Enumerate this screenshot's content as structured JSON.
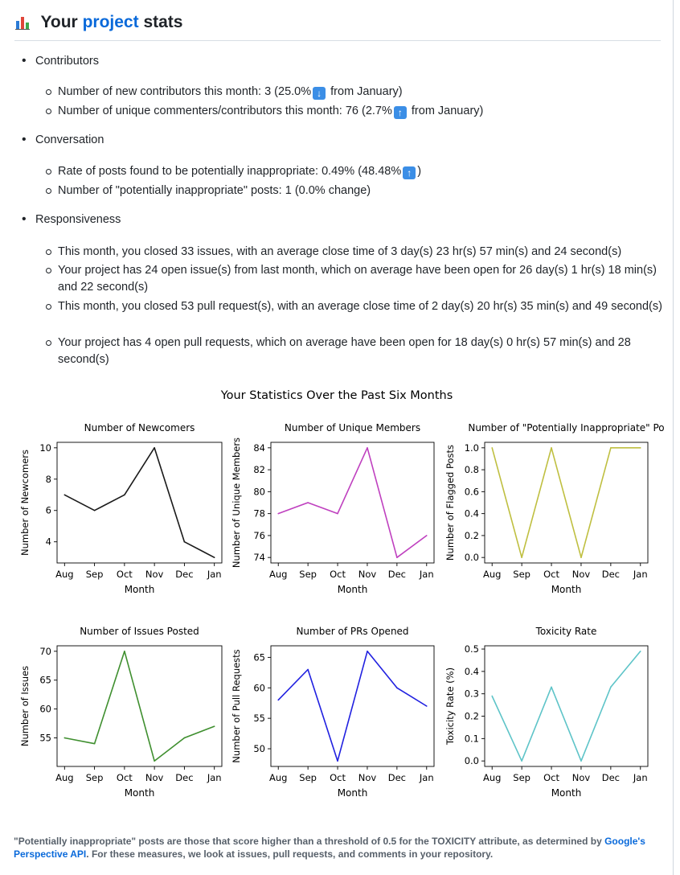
{
  "header": {
    "title_pre": "Your",
    "title_link": "project",
    "title_post": "stats",
    "icon": "bar-chart-icon"
  },
  "sections": [
    {
      "label": "Contributors",
      "items": [
        {
          "text": "Number of new contributors this month: 3 (25.0%",
          "arrow": "down",
          "after": " from January)"
        },
        {
          "text": "Number of unique commenters/contributors this month: 76 (2.7%",
          "arrow": "up",
          "after": " from January)"
        }
      ]
    },
    {
      "label": "Conversation",
      "items": [
        {
          "text": "Rate of posts found to be potentially inappropriate: 0.49% (48.48%",
          "arrow": "up",
          "after": ")"
        },
        {
          "text": "Number of \"potentially inappropriate\" posts: 1 (0.0% change)",
          "arrow": null,
          "after": ""
        }
      ]
    },
    {
      "label": "Responsiveness",
      "items": [
        {
          "text": "This month, you closed 33 issues, with an average close time of 3 day(s) 23 hr(s) 57 min(s) and 24 second(s)",
          "arrow": null,
          "after": ""
        },
        {
          "text": "Your project has 24 open issue(s) from last month, which on average have been open for 26 day(s) 1 hr(s) 18 min(s) and 22 second(s)",
          "arrow": null,
          "after": ""
        },
        {
          "text": "This month, you closed 53 pull request(s), with an average close time of 2 day(s) 20 hr(s) 35 min(s) and 49 second(s)",
          "arrow": null,
          "after": ""
        },
        {
          "text": "Your project has 4 open pull requests, which on average have been open for 18 day(s) 0 hr(s) 57 min(s) and 28 second(s)",
          "arrow": null,
          "after": ""
        }
      ]
    }
  ],
  "figure_title": "Your Statistics Over the Past Six Months",
  "chart_data": [
    {
      "type": "line",
      "title": "Number of Newcomers",
      "xlabel": "Month",
      "ylabel": "Number of Newcomers",
      "categories": [
        "Aug",
        "Sep",
        "Oct",
        "Nov",
        "Dec",
        "Jan"
      ],
      "values": [
        7,
        6,
        7,
        10,
        4,
        3
      ],
      "ylim": [
        2.65,
        10.35
      ],
      "yticks": [
        4,
        6,
        8,
        10
      ],
      "yticklabels": [
        "4",
        "6",
        "8",
        "10"
      ],
      "color": "#1a1a1a"
    },
    {
      "type": "line",
      "title": "Number of Unique Members",
      "xlabel": "Month",
      "ylabel": "Number of Unique Members",
      "categories": [
        "Aug",
        "Sep",
        "Oct",
        "Nov",
        "Dec",
        "Jan"
      ],
      "values": [
        78,
        79,
        78,
        84,
        74,
        76
      ],
      "ylim": [
        73.5,
        84.5
      ],
      "yticks": [
        74,
        76,
        78,
        80,
        82,
        84
      ],
      "yticklabels": [
        "74",
        "76",
        "78",
        "80",
        "82",
        "84"
      ],
      "color": "#bf40bf"
    },
    {
      "type": "line",
      "title": "Number of \"Potentially Inappropriate\" Po",
      "xlabel": "Month",
      "ylabel": "Number of Flagged Posts",
      "categories": [
        "Aug",
        "Sep",
        "Oct",
        "Nov",
        "Dec",
        "Jan"
      ],
      "values": [
        1,
        0,
        1,
        0,
        1,
        1
      ],
      "ylim": [
        -0.05,
        1.05
      ],
      "yticks": [
        0,
        0.2,
        0.4,
        0.6,
        0.8,
        1.0
      ],
      "yticklabels": [
        "0.0",
        "0.2",
        "0.4",
        "0.6",
        "0.8",
        "1.0"
      ],
      "color": "#bfbf40"
    },
    {
      "type": "line",
      "title": "Number of Issues Posted",
      "xlabel": "Month",
      "ylabel": "Number of Issues",
      "categories": [
        "Aug",
        "Sep",
        "Oct",
        "Nov",
        "Dec",
        "Jan"
      ],
      "values": [
        55,
        54,
        70,
        51,
        55,
        57
      ],
      "ylim": [
        50.05,
        70.95
      ],
      "yticks": [
        55,
        60,
        65,
        70
      ],
      "yticklabels": [
        "55",
        "60",
        "65",
        "70"
      ],
      "color": "#3f8f2f"
    },
    {
      "type": "line",
      "title": "Number of PRs Opened",
      "xlabel": "Month",
      "ylabel": "Number of Pull Requests",
      "categories": [
        "Aug",
        "Sep",
        "Oct",
        "Nov",
        "Dec",
        "Jan"
      ],
      "values": [
        58,
        63,
        48,
        66,
        60,
        57
      ],
      "ylim": [
        47.1,
        66.9
      ],
      "yticks": [
        50,
        55,
        60,
        65
      ],
      "yticklabels": [
        "50",
        "55",
        "60",
        "65"
      ],
      "color": "#2020e0"
    },
    {
      "type": "line",
      "title": "Toxicity Rate",
      "xlabel": "Month",
      "ylabel": "Toxicity Rate (%)",
      "categories": [
        "Aug",
        "Sep",
        "Oct",
        "Nov",
        "Dec",
        "Jan"
      ],
      "values": [
        0.29,
        0,
        0.33,
        0,
        0.33,
        0.49
      ],
      "ylim": [
        -0.0245,
        0.5145
      ],
      "yticks": [
        0,
        0.1,
        0.2,
        0.3,
        0.4,
        0.5
      ],
      "yticklabels": [
        "0.0",
        "0.1",
        "0.2",
        "0.3",
        "0.4",
        "0.5"
      ],
      "color": "#5ec4c8"
    }
  ],
  "footnote": {
    "text1": "\"Potentially inappropriate\" posts are those that score higher than a threshold of 0.5 for the TOXICITY attribute, as determined by ",
    "link": "Google's Perspective API",
    "text2": ". For these measures, we look at issues, pull requests, and comments in your repository."
  }
}
